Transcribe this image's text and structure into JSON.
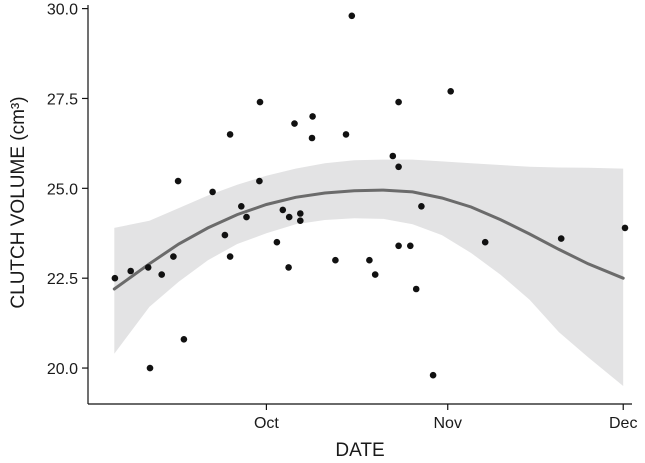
{
  "chart_data": {
    "type": "scatter",
    "xlabel": "DATE",
    "ylabel": "CLUTCH VOLUME (cm³)",
    "x_ticks": [
      {
        "label": "Oct",
        "value": 30
      },
      {
        "label": "Nov",
        "value": 61
      },
      {
        "label": "Dec",
        "value": 91
      }
    ],
    "y_ticks": [
      {
        "label": "20.0",
        "value": 20.0
      },
      {
        "label": "22.5",
        "value": 22.5
      },
      {
        "label": "25.0",
        "value": 25.0
      },
      {
        "label": "27.5",
        "value": 27.5
      },
      {
        "label": "30.0",
        "value": 30.0
      }
    ],
    "xlim": [
      -0.5,
      92.5
    ],
    "ylim": [
      19.0,
      30.1
    ],
    "grid": false,
    "colors": {
      "points": "#111111",
      "fit_line": "#6b6b6b",
      "band": "#e3e3e4",
      "axis": "#111111"
    },
    "points": [
      {
        "x": 4.1,
        "y": 22.5
      },
      {
        "x": 6.8,
        "y": 22.7
      },
      {
        "x": 9.8,
        "y": 22.8
      },
      {
        "x": 10.1,
        "y": 20.0
      },
      {
        "x": 12.1,
        "y": 22.6
      },
      {
        "x": 14.1,
        "y": 23.1
      },
      {
        "x": 14.9,
        "y": 25.2
      },
      {
        "x": 15.9,
        "y": 20.8
      },
      {
        "x": 20.8,
        "y": 24.9
      },
      {
        "x": 22.9,
        "y": 23.7
      },
      {
        "x": 23.8,
        "y": 26.5
      },
      {
        "x": 23.8,
        "y": 23.1
      },
      {
        "x": 25.7,
        "y": 24.5
      },
      {
        "x": 26.6,
        "y": 24.2
      },
      {
        "x": 28.8,
        "y": 25.2
      },
      {
        "x": 28.9,
        "y": 27.4
      },
      {
        "x": 31.8,
        "y": 23.5
      },
      {
        "x": 32.8,
        "y": 24.4
      },
      {
        "x": 33.8,
        "y": 22.8
      },
      {
        "x": 33.9,
        "y": 24.2
      },
      {
        "x": 34.8,
        "y": 26.8
      },
      {
        "x": 35.8,
        "y": 24.1
      },
      {
        "x": 35.8,
        "y": 24.3
      },
      {
        "x": 37.8,
        "y": 26.4
      },
      {
        "x": 37.9,
        "y": 27.0
      },
      {
        "x": 41.8,
        "y": 23.0
      },
      {
        "x": 43.6,
        "y": 26.5
      },
      {
        "x": 44.6,
        "y": 29.8
      },
      {
        "x": 47.6,
        "y": 23.0
      },
      {
        "x": 48.6,
        "y": 22.6
      },
      {
        "x": 51.6,
        "y": 25.9
      },
      {
        "x": 52.6,
        "y": 25.6
      },
      {
        "x": 52.6,
        "y": 27.4
      },
      {
        "x": 52.6,
        "y": 23.4
      },
      {
        "x": 54.6,
        "y": 23.4
      },
      {
        "x": 55.6,
        "y": 22.2
      },
      {
        "x": 56.5,
        "y": 24.5
      },
      {
        "x": 58.5,
        "y": 19.8
      },
      {
        "x": 61.5,
        "y": 27.7
      },
      {
        "x": 67.4,
        "y": 23.5
      },
      {
        "x": 80.4,
        "y": 23.6
      },
      {
        "x": 91.3,
        "y": 23.9
      }
    ],
    "fit": {
      "x": [
        4,
        10,
        15,
        20,
        25,
        30,
        35,
        40,
        45,
        50,
        55,
        60,
        65,
        70,
        75,
        80,
        85,
        91
      ],
      "y": [
        22.2,
        22.9,
        23.45,
        23.9,
        24.27,
        24.55,
        24.75,
        24.87,
        24.93,
        24.95,
        24.9,
        24.73,
        24.48,
        24.13,
        23.73,
        23.3,
        22.9,
        22.5
      ]
    },
    "band": {
      "x": [
        4,
        10,
        15,
        20,
        25,
        30,
        35,
        40,
        45,
        50,
        55,
        60,
        65,
        70,
        75,
        80,
        85,
        91
      ],
      "upper": [
        23.9,
        24.1,
        24.45,
        24.8,
        25.1,
        25.35,
        25.55,
        25.7,
        25.78,
        25.8,
        25.8,
        25.75,
        25.7,
        25.65,
        25.6,
        25.58,
        25.57,
        25.55
      ],
      "lower": [
        20.4,
        21.7,
        22.4,
        23.0,
        23.45,
        23.75,
        24.0,
        24.12,
        24.17,
        24.15,
        24.0,
        23.7,
        23.2,
        22.6,
        21.9,
        21.0,
        20.3,
        19.5
      ]
    }
  }
}
